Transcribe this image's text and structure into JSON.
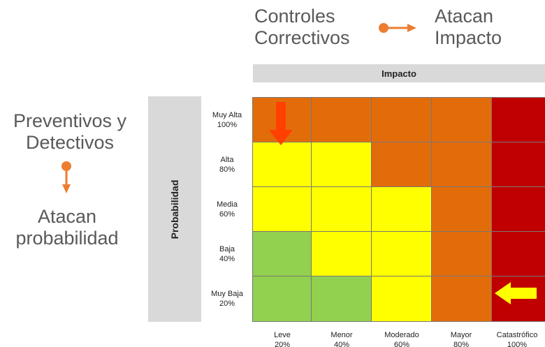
{
  "top_left_headline": "Controles\nCorrectivos",
  "top_right_headline": "Atacan\nImpacto",
  "left_top_text": "Preventivos y\nDetectivos",
  "left_bottom_text": "Atacan\nprobabilidad",
  "impact_axis_label": "Impacto",
  "probability_axis_label": "Probabilidad",
  "probability_rows": [
    "Muy Alta\n100%",
    "Alta\n80%",
    "Media\n60%",
    "Baja\n40%",
    "Muy Baja\n20%"
  ],
  "impact_columns": [
    "Leve\n20%",
    "Menor\n40%",
    "Moderado\n60%",
    "Mayor\n80%",
    "Catastrófico\n100%"
  ],
  "colors": {
    "green": "#92d050",
    "yellow": "#ffff00",
    "orange": "#e36c0a",
    "red": "#c00000",
    "arrow_red": "#ff4000",
    "arrow_yellow": "#ffff00",
    "connector_orange": "#ed7d31"
  },
  "matrix": [
    [
      "orange",
      "orange",
      "orange",
      "orange",
      "red"
    ],
    [
      "yellow",
      "yellow",
      "orange",
      "orange",
      "red"
    ],
    [
      "yellow",
      "yellow",
      "yellow",
      "orange",
      "red"
    ],
    [
      "green",
      "yellow",
      "yellow",
      "orange",
      "red"
    ],
    [
      "green",
      "green",
      "yellow",
      "orange",
      "red"
    ]
  ]
}
